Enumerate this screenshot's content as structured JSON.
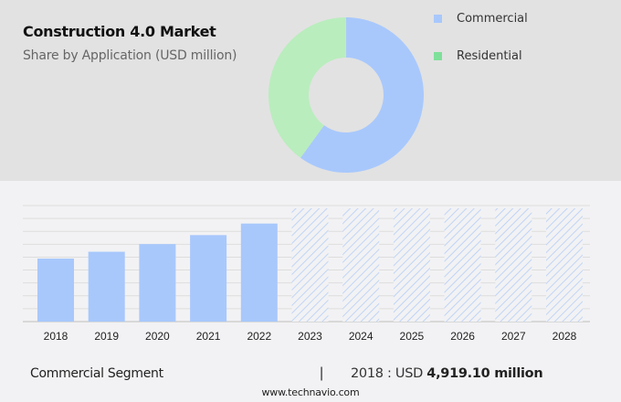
{
  "header": {
    "title": "Construction 4.0 Market",
    "subtitle": "Share by Application (USD million)"
  },
  "legend": {
    "items": [
      {
        "label": "Commercial",
        "color": "#a8c8fc"
      },
      {
        "label": "Residential",
        "color": "#7ee09a"
      }
    ]
  },
  "footer": {
    "segment_label": "Commercial Segment",
    "separator": "|",
    "value_prefix": "2018 : USD ",
    "value_bold": "4,919.10 million",
    "source": "www.technavio.com"
  },
  "colors": {
    "commercial": "#a8c8fc",
    "residential": "#b9edbd",
    "residential_legend": "#7ee09a",
    "top_bg": "#e2e2e2",
    "bottom_bg": "#f2f2f4",
    "grid": "#dddddd"
  },
  "chart_data": [
    {
      "type": "pie",
      "title": "Construction 4.0 Market",
      "subtitle": "Share by Application (USD million)",
      "donut": true,
      "categories": [
        "Commercial",
        "Residential"
      ],
      "values": [
        60,
        40
      ],
      "legend_position": "right"
    },
    {
      "type": "bar",
      "title": "Commercial Segment",
      "categories": [
        "2018",
        "2019",
        "2020",
        "2021",
        "2022",
        "2023",
        "2024",
        "2025",
        "2026",
        "2027",
        "2028"
      ],
      "values": [
        4919.1,
        5450,
        6050,
        6750,
        7650,
        null,
        null,
        null,
        null,
        null,
        null
      ],
      "forecast_years": [
        "2023",
        "2024",
        "2025",
        "2026",
        "2027",
        "2028"
      ],
      "forecast_style": "hatched",
      "annotation": "2018 : USD 4,919.10 million",
      "xlabel": "",
      "ylabel": "",
      "grid": true,
      "y_axis_labels_visible": false
    }
  ]
}
